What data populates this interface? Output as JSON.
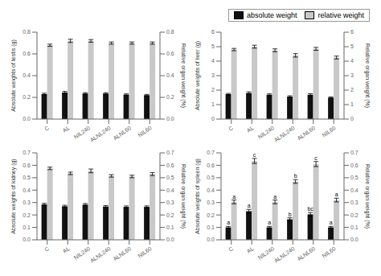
{
  "chart_data": [
    {
      "type": "bar",
      "categories": [
        "C",
        "AL",
        "NIL240",
        "ALNL240",
        "ALNL60",
        "NIL60"
      ],
      "series": [
        {
          "name": "absolute weight",
          "color": "#111111",
          "values": [
            0.23,
            0.245,
            0.235,
            0.235,
            0.225,
            0.22
          ],
          "errors": [
            0.008,
            0.01,
            0.008,
            0.008,
            0.007,
            0.007
          ]
        },
        {
          "name": "relative weight",
          "color": "#c8c8c8",
          "axis": "y2",
          "values": [
            0.68,
            0.72,
            0.72,
            0.7,
            0.7,
            0.7
          ],
          "errors": [
            0.01,
            0.015,
            0.012,
            0.01,
            0.01,
            0.01
          ]
        }
      ],
      "ylabel": "Absolute weights of testis (g)",
      "y2label": "Relative organ weight (%)",
      "ylim": [
        0.0,
        0.8
      ],
      "yticks": [
        {
          "value": 0,
          "label": "0.0"
        },
        0.2,
        0.4,
        0.6,
        0.8
      ],
      "y2lim": [
        0.0,
        0.8
      ],
      "y2ticks": [
        {
          "value": 0,
          "label": "0.0"
        },
        0.2,
        0.4,
        0.6,
        0.8
      ],
      "grid": false
    },
    {
      "type": "bar",
      "categories": [
        "C",
        "AL",
        "NIL240",
        "ALNL240",
        "ALNL60",
        "NIL60"
      ],
      "series": [
        {
          "name": "absolute weight",
          "color": "#111111",
          "values": [
            1.72,
            1.8,
            1.68,
            1.55,
            1.68,
            1.48
          ],
          "errors": [
            0.05,
            0.08,
            0.06,
            0.06,
            0.07,
            0.05
          ]
        },
        {
          "name": "relative weight",
          "color": "#c8c8c8",
          "axis": "y2",
          "values": [
            4.8,
            5.0,
            4.75,
            4.4,
            4.85,
            4.25
          ],
          "errors": [
            0.08,
            0.1,
            0.1,
            0.12,
            0.1,
            0.1
          ]
        }
      ],
      "ylabel": "Absolute weights of liver (g)",
      "y2label": "Relative organ weight (%)",
      "ylim": [
        0,
        6
      ],
      "yticks": [
        0,
        1,
        2,
        3,
        4,
        5,
        6
      ],
      "y2lim": [
        0,
        6
      ],
      "y2ticks": [
        0,
        1,
        2,
        3,
        4,
        5,
        6
      ],
      "grid": false,
      "legend": "upper right"
    },
    {
      "type": "bar",
      "categories": [
        "C",
        "AL",
        "NIL240",
        "ALNL240",
        "ALNL60",
        "NIL60"
      ],
      "series": [
        {
          "name": "absolute weight",
          "color": "#111111",
          "values": [
            0.285,
            0.27,
            0.283,
            0.268,
            0.265,
            0.265
          ],
          "errors": [
            0.009,
            0.008,
            0.009,
            0.008,
            0.008,
            0.008
          ]
        },
        {
          "name": "relative weight",
          "color": "#c8c8c8",
          "axis": "y2",
          "values": [
            0.575,
            0.535,
            0.555,
            0.515,
            0.51,
            0.53
          ],
          "errors": [
            0.01,
            0.01,
            0.015,
            0.01,
            0.01,
            0.012
          ]
        }
      ],
      "ylabel": "Absolute weights of kidney (g)",
      "y2label": "Relative organ weight (%)",
      "ylim": [
        0.0,
        0.7
      ],
      "yticks": [
        {
          "value": 0,
          "label": "0.0"
        },
        0.1,
        0.2,
        0.3,
        0.4,
        0.5,
        0.6,
        0.7
      ],
      "y2lim": [
        0.0,
        0.7
      ],
      "y2ticks": [
        {
          "value": 0,
          "label": "0.0"
        },
        0.1,
        0.2,
        0.3,
        0.4,
        0.5,
        0.6,
        0.7
      ],
      "grid": false
    },
    {
      "type": "bar",
      "categories": [
        "C",
        "AL",
        "NIL240",
        "ALNL240",
        "ALNL60",
        "NIL60"
      ],
      "series": [
        {
          "name": "absolute weight",
          "color": "#111111",
          "values": [
            0.1,
            0.23,
            0.1,
            0.165,
            0.205,
            0.1
          ],
          "errors": [
            0.008,
            0.015,
            0.008,
            0.012,
            0.015,
            0.008
          ],
          "annotations": [
            "a",
            "a",
            "a",
            "b",
            "bc",
            "a"
          ]
        },
        {
          "name": "relative weight",
          "color": "#c8c8c8",
          "axis": "y2",
          "values": [
            0.305,
            0.635,
            0.305,
            0.47,
            0.61,
            0.32
          ],
          "errors": [
            0.015,
            0.02,
            0.015,
            0.015,
            0.02,
            0.015
          ],
          "annotations": [
            "a",
            "c",
            "a",
            "b",
            "c",
            "a"
          ]
        }
      ],
      "ylabel": "Absolute weights of spleen (g)",
      "y2label": "Relative organ weight (%)",
      "ylim": [
        0.0,
        0.7
      ],
      "yticks": [
        {
          "value": 0,
          "label": "0.0"
        },
        0.1,
        0.2,
        0.3,
        0.4,
        0.5,
        0.6,
        0.7
      ],
      "y2lim": [
        0.0,
        0.7
      ],
      "y2ticks": [
        {
          "value": 0,
          "label": "0.0"
        },
        0.1,
        0.2,
        0.3,
        0.4,
        0.5,
        0.6,
        0.7
      ],
      "grid": false
    }
  ]
}
